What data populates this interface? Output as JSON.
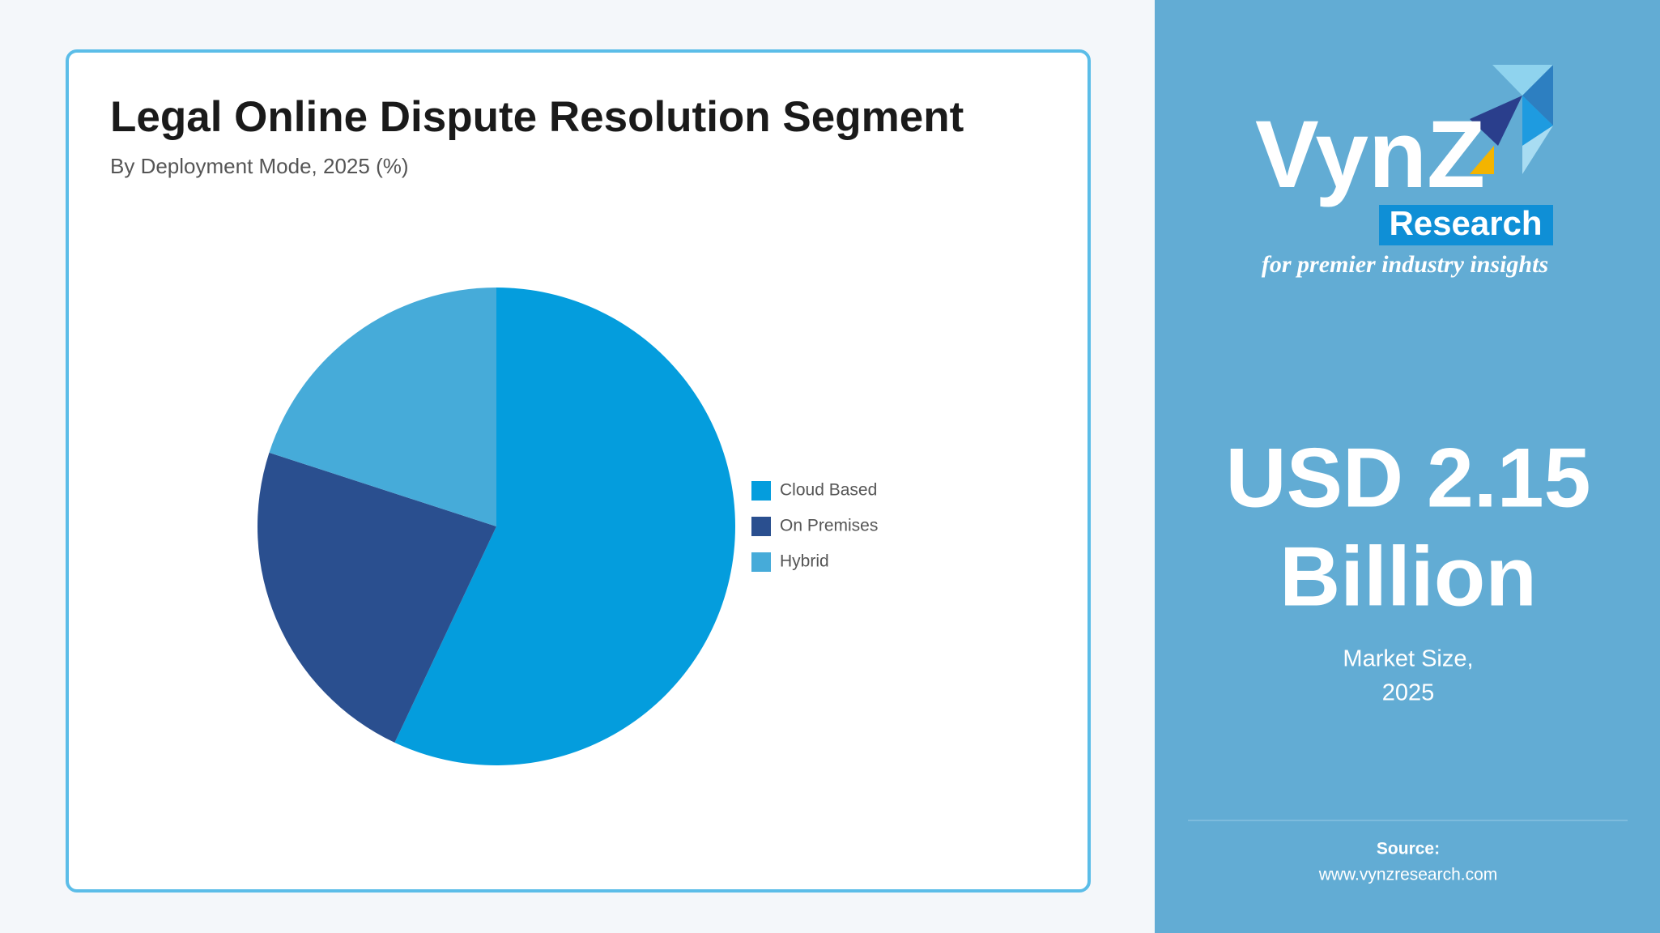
{
  "chart_data": {
    "type": "pie",
    "title": "Legal Online Dispute Resolution Segment",
    "subtitle": "By Deployment Mode, 2025 (%)",
    "categories": [
      "Cloud Based",
      "On Premises",
      "Hybrid"
    ],
    "values": [
      57,
      23,
      20
    ],
    "colors": [
      "#049ddd",
      "#2a4f8f",
      "#46abd9"
    ],
    "legend": "right"
  },
  "brand": {
    "name": "VynZ",
    "sub": "Research",
    "tagline": "for premier industry insights"
  },
  "market": {
    "amount": "USD 2.15",
    "unit": "Billion",
    "label": "Market Size,",
    "year": "2025"
  },
  "source": {
    "label": "Source:",
    "url": "www.vynzresearch.com"
  }
}
